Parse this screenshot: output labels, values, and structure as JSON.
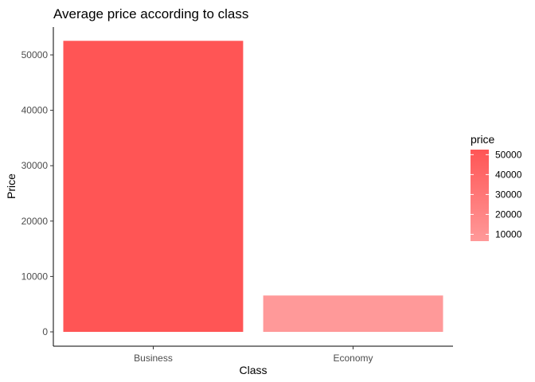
{
  "chart_data": {
    "type": "bar",
    "title": "Average price according to class",
    "xlabel": "Class",
    "ylabel": "Price",
    "categories": [
      "Business",
      "Economy"
    ],
    "values": [
      52540,
      6572
    ],
    "ylim": [
      0,
      55000
    ],
    "yticks": [
      0,
      10000,
      20000,
      30000,
      40000,
      50000
    ],
    "grid": false,
    "legend": {
      "title": "price",
      "placement": "right",
      "type": "gradient",
      "range": [
        6572,
        52540
      ],
      "breaks": [
        10000,
        20000,
        30000,
        40000,
        50000
      ],
      "low_color": "#ff9999",
      "high_color": "#ff5555"
    }
  }
}
